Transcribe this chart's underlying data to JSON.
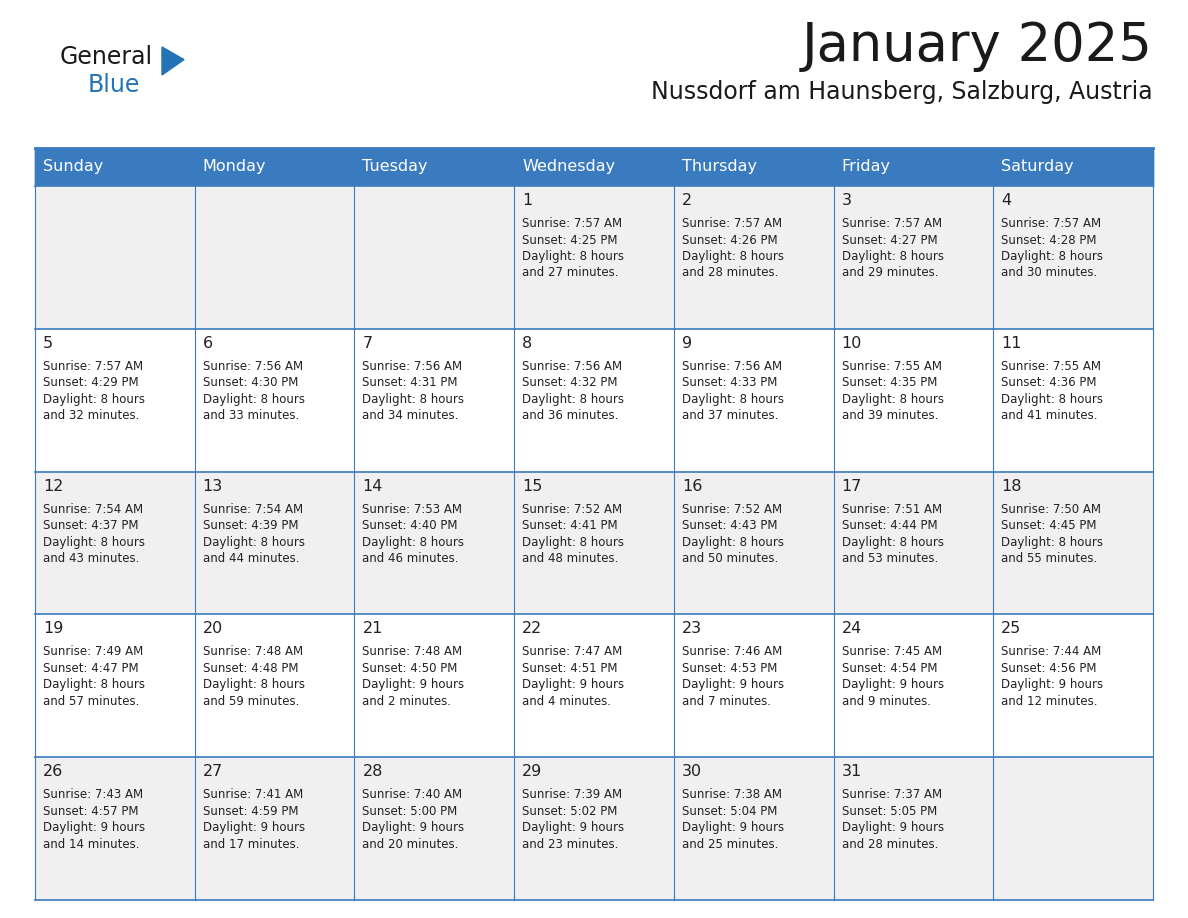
{
  "title": "January 2025",
  "subtitle": "Nussdorf am Haunsberg, Salzburg, Austria",
  "days_of_week": [
    "Sunday",
    "Monday",
    "Tuesday",
    "Wednesday",
    "Thursday",
    "Friday",
    "Saturday"
  ],
  "header_bg": "#3a7bbf",
  "header_text": "#ffffff",
  "row_bg_light": "#f0f0f0",
  "row_bg_white": "#ffffff",
  "cell_text": "#222222",
  "grid_color": "#3a7abf",
  "title_color": "#1a1a1a",
  "subtitle_color": "#1a1a1a",
  "logo_general_color": "#1a1a1a",
  "logo_blue_color": "#2474b5",
  "calendar_data": [
    [
      {
        "day": "",
        "sunrise": "",
        "sunset": "",
        "daylight": ""
      },
      {
        "day": "",
        "sunrise": "",
        "sunset": "",
        "daylight": ""
      },
      {
        "day": "",
        "sunrise": "",
        "sunset": "",
        "daylight": ""
      },
      {
        "day": "1",
        "sunrise": "7:57 AM",
        "sunset": "4:25 PM",
        "daylight": "8 hours and 27 minutes."
      },
      {
        "day": "2",
        "sunrise": "7:57 AM",
        "sunset": "4:26 PM",
        "daylight": "8 hours and 28 minutes."
      },
      {
        "day": "3",
        "sunrise": "7:57 AM",
        "sunset": "4:27 PM",
        "daylight": "8 hours and 29 minutes."
      },
      {
        "day": "4",
        "sunrise": "7:57 AM",
        "sunset": "4:28 PM",
        "daylight": "8 hours and 30 minutes."
      }
    ],
    [
      {
        "day": "5",
        "sunrise": "7:57 AM",
        "sunset": "4:29 PM",
        "daylight": "8 hours and 32 minutes."
      },
      {
        "day": "6",
        "sunrise": "7:56 AM",
        "sunset": "4:30 PM",
        "daylight": "8 hours and 33 minutes."
      },
      {
        "day": "7",
        "sunrise": "7:56 AM",
        "sunset": "4:31 PM",
        "daylight": "8 hours and 34 minutes."
      },
      {
        "day": "8",
        "sunrise": "7:56 AM",
        "sunset": "4:32 PM",
        "daylight": "8 hours and 36 minutes."
      },
      {
        "day": "9",
        "sunrise": "7:56 AM",
        "sunset": "4:33 PM",
        "daylight": "8 hours and 37 minutes."
      },
      {
        "day": "10",
        "sunrise": "7:55 AM",
        "sunset": "4:35 PM",
        "daylight": "8 hours and 39 minutes."
      },
      {
        "day": "11",
        "sunrise": "7:55 AM",
        "sunset": "4:36 PM",
        "daylight": "8 hours and 41 minutes."
      }
    ],
    [
      {
        "day": "12",
        "sunrise": "7:54 AM",
        "sunset": "4:37 PM",
        "daylight": "8 hours and 43 minutes."
      },
      {
        "day": "13",
        "sunrise": "7:54 AM",
        "sunset": "4:39 PM",
        "daylight": "8 hours and 44 minutes."
      },
      {
        "day": "14",
        "sunrise": "7:53 AM",
        "sunset": "4:40 PM",
        "daylight": "8 hours and 46 minutes."
      },
      {
        "day": "15",
        "sunrise": "7:52 AM",
        "sunset": "4:41 PM",
        "daylight": "8 hours and 48 minutes."
      },
      {
        "day": "16",
        "sunrise": "7:52 AM",
        "sunset": "4:43 PM",
        "daylight": "8 hours and 50 minutes."
      },
      {
        "day": "17",
        "sunrise": "7:51 AM",
        "sunset": "4:44 PM",
        "daylight": "8 hours and 53 minutes."
      },
      {
        "day": "18",
        "sunrise": "7:50 AM",
        "sunset": "4:45 PM",
        "daylight": "8 hours and 55 minutes."
      }
    ],
    [
      {
        "day": "19",
        "sunrise": "7:49 AM",
        "sunset": "4:47 PM",
        "daylight": "8 hours and 57 minutes."
      },
      {
        "day": "20",
        "sunrise": "7:48 AM",
        "sunset": "4:48 PM",
        "daylight": "8 hours and 59 minutes."
      },
      {
        "day": "21",
        "sunrise": "7:48 AM",
        "sunset": "4:50 PM",
        "daylight": "9 hours and 2 minutes."
      },
      {
        "day": "22",
        "sunrise": "7:47 AM",
        "sunset": "4:51 PM",
        "daylight": "9 hours and 4 minutes."
      },
      {
        "day": "23",
        "sunrise": "7:46 AM",
        "sunset": "4:53 PM",
        "daylight": "9 hours and 7 minutes."
      },
      {
        "day": "24",
        "sunrise": "7:45 AM",
        "sunset": "4:54 PM",
        "daylight": "9 hours and 9 minutes."
      },
      {
        "day": "25",
        "sunrise": "7:44 AM",
        "sunset": "4:56 PM",
        "daylight": "9 hours and 12 minutes."
      }
    ],
    [
      {
        "day": "26",
        "sunrise": "7:43 AM",
        "sunset": "4:57 PM",
        "daylight": "9 hours and 14 minutes."
      },
      {
        "day": "27",
        "sunrise": "7:41 AM",
        "sunset": "4:59 PM",
        "daylight": "9 hours and 17 minutes."
      },
      {
        "day": "28",
        "sunrise": "7:40 AM",
        "sunset": "5:00 PM",
        "daylight": "9 hours and 20 minutes."
      },
      {
        "day": "29",
        "sunrise": "7:39 AM",
        "sunset": "5:02 PM",
        "daylight": "9 hours and 23 minutes."
      },
      {
        "day": "30",
        "sunrise": "7:38 AM",
        "sunset": "5:04 PM",
        "daylight": "9 hours and 25 minutes."
      },
      {
        "day": "31",
        "sunrise": "7:37 AM",
        "sunset": "5:05 PM",
        "daylight": "9 hours and 28 minutes."
      },
      {
        "day": "",
        "sunrise": "",
        "sunset": "",
        "daylight": ""
      }
    ]
  ]
}
